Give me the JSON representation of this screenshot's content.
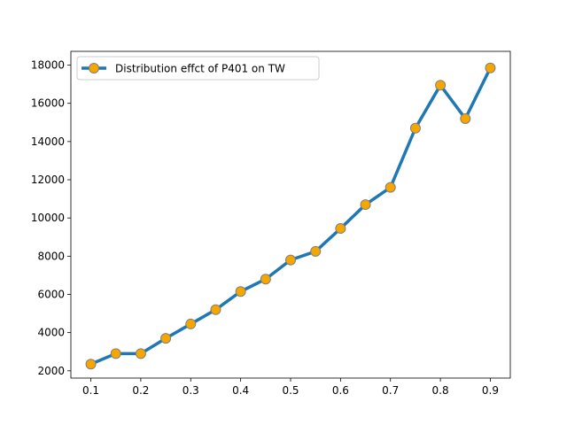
{
  "chart_data": {
    "type": "line",
    "title": "",
    "xlabel": "",
    "ylabel": "",
    "x": [
      0.1,
      0.15,
      0.2,
      0.25,
      0.3,
      0.35,
      0.4,
      0.45,
      0.5,
      0.55,
      0.6,
      0.65,
      0.7,
      0.75,
      0.8,
      0.85,
      0.9
    ],
    "xlim": [
      0.06,
      0.94
    ],
    "ylim": [
      1620,
      18720
    ],
    "xticks": [
      "0.1",
      "0.2",
      "0.3",
      "0.4",
      "0.5",
      "0.6",
      "0.7",
      "0.8",
      "0.9"
    ],
    "yticks": [
      "2000",
      "4000",
      "6000",
      "8000",
      "10000",
      "12000",
      "14000",
      "16000",
      "18000"
    ],
    "grid": false,
    "legend_position": "upper-left",
    "series": [
      {
        "name": "Distribution effct of P401 on TW",
        "line_color": "#1f77b4",
        "marker_color": "#f5a700",
        "marker_edge_color": "#7f7f7f",
        "marker": "circle",
        "values": [
          2350,
          2900,
          2900,
          3700,
          4450,
          5200,
          6150,
          6800,
          7800,
          8250,
          9450,
          10700,
          11600,
          14700,
          16950,
          15200,
          17850
        ]
      }
    ]
  }
}
